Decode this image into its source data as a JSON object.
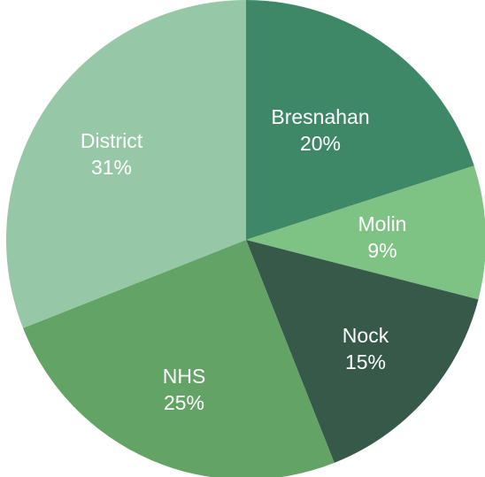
{
  "chart_data": {
    "type": "pie",
    "title": "",
    "start_angle_deg": 0,
    "direction": "clockwise",
    "slices": [
      {
        "label": "Bresnahan",
        "percent_label": "20%",
        "value": 20,
        "color": "#3e8868"
      },
      {
        "label": "Molin",
        "percent_label": "9%",
        "value": 9,
        "color": "#7ec284"
      },
      {
        "label": "Nock",
        "percent_label": "15%",
        "value": 15,
        "color": "#36594a"
      },
      {
        "label": "NHS",
        "percent_label": "25%",
        "value": 25,
        "color": "#63a366"
      },
      {
        "label": "District",
        "percent_label": "31%",
        "value": 31,
        "color": "#96c8a7"
      }
    ]
  }
}
